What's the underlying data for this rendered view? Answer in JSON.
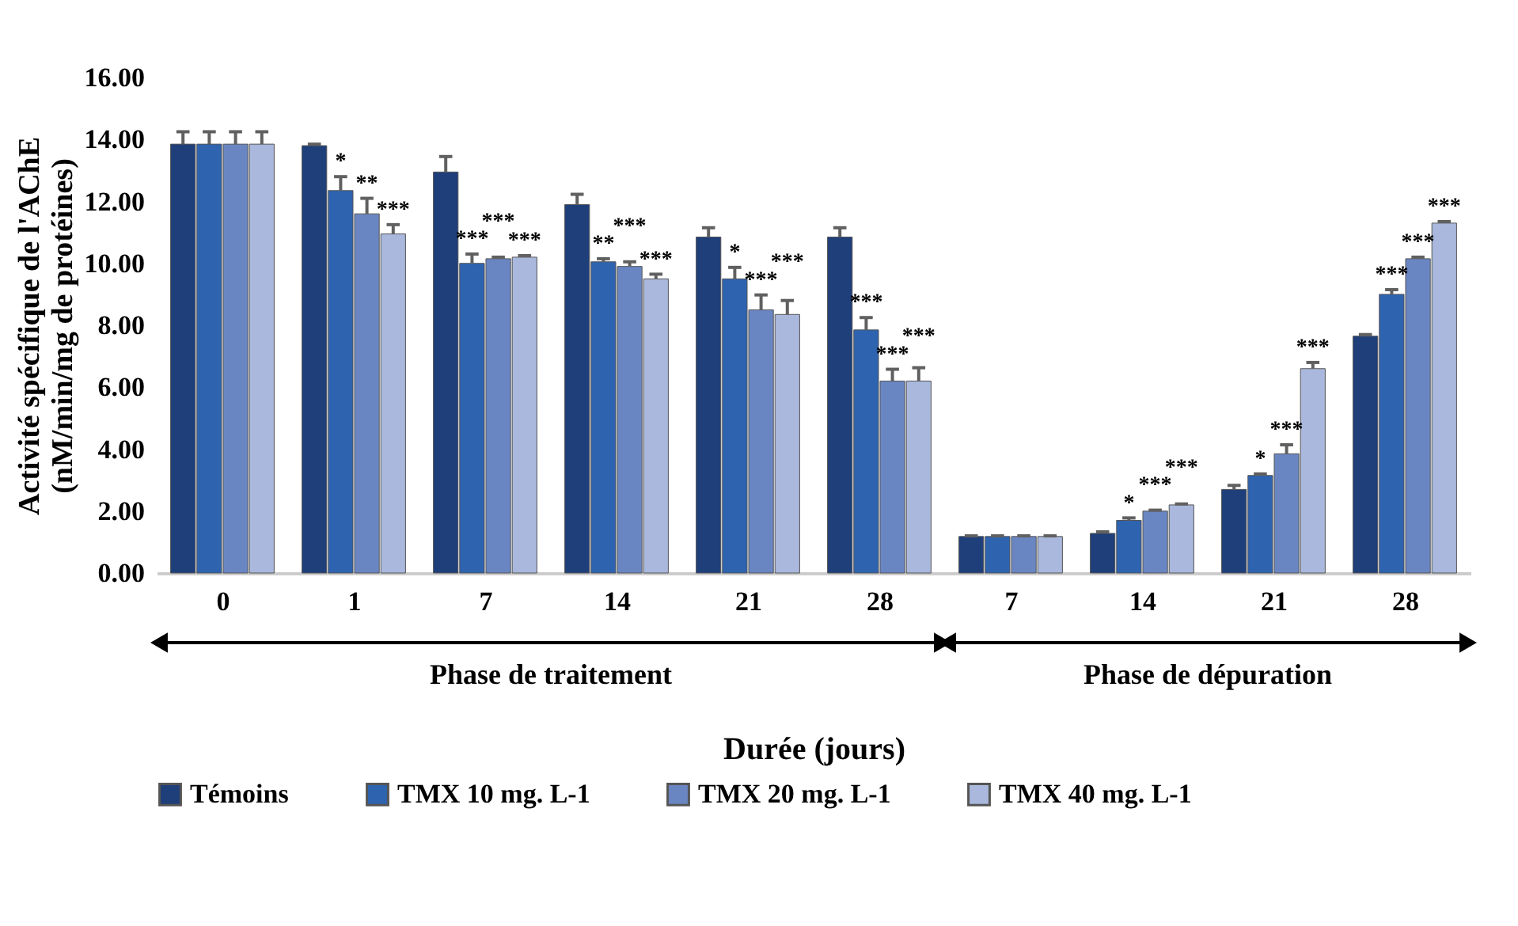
{
  "chart_data": {
    "type": "bar",
    "xlabel": "Durée (jours)",
    "ylabel": "Activité spécifique de l'AChE\n(nM/min/mg de protéines)",
    "categories": [
      "0",
      "1",
      "7",
      "14",
      "21",
      "28",
      "7",
      "14",
      "21",
      "28"
    ],
    "ylim": [
      0,
      16
    ],
    "yticks": [
      {
        "value": 0,
        "label": "0.00"
      },
      {
        "value": 2,
        "label": "2.00"
      },
      {
        "value": 4,
        "label": "4.00"
      },
      {
        "value": 6,
        "label": "6.00"
      },
      {
        "value": 8,
        "label": "8.00"
      },
      {
        "value": 10,
        "label": "10.00"
      },
      {
        "value": 12,
        "label": "12.00"
      },
      {
        "value": 14,
        "label": "14.00"
      },
      {
        "value": 16,
        "label": "16.00"
      }
    ],
    "grid": false,
    "legend": "bottom",
    "annotations": [
      "Phase de traitement",
      "Phase de dépuration"
    ],
    "series": [
      {
        "name": "Témoins",
        "color": "#1f3f7a",
        "values": [
          13.85,
          13.8,
          12.95,
          11.9,
          10.85,
          10.85,
          1.18,
          1.28,
          2.7,
          7.65
        ],
        "errors": [
          0.4,
          0.05,
          0.5,
          0.33,
          0.3,
          0.3,
          0.02,
          0.05,
          0.13,
          0.05
        ]
      },
      {
        "name": "TMX 10 mg. L-1",
        "color": "#2e63b0",
        "values": [
          13.85,
          12.35,
          10.0,
          10.05,
          9.5,
          7.85,
          1.18,
          1.7,
          3.15,
          9.0
        ],
        "errors": [
          0.4,
          0.45,
          0.3,
          0.1,
          0.37,
          0.4,
          0.02,
          0.08,
          0.05,
          0.15
        ],
        "value_labels": [
          null,
          "*",
          "***",
          "**",
          "*",
          "***",
          null,
          "*",
          "*",
          "***"
        ]
      },
      {
        "name": "TMX 20 mg. L-1",
        "color": "#6a86c2",
        "values": [
          13.85,
          11.6,
          10.15,
          9.9,
          8.5,
          6.2,
          1.18,
          2.0,
          3.85,
          10.15
        ],
        "errors": [
          0.4,
          0.5,
          0.05,
          0.15,
          0.48,
          0.38,
          0.02,
          0.03,
          0.29,
          0.05
        ],
        "value_labels": [
          null,
          "**",
          "***",
          "***",
          "***",
          "***",
          null,
          "***",
          "***",
          "***"
        ]
      },
      {
        "name": "TMX 40 mg. L-1",
        "color": "#a9b8dc",
        "values": [
          13.85,
          10.95,
          10.2,
          9.5,
          8.35,
          6.2,
          1.18,
          2.2,
          6.6,
          11.3
        ],
        "errors": [
          0.4,
          0.3,
          0.05,
          0.15,
          0.45,
          0.43,
          0.02,
          0.03,
          0.2,
          0.05
        ],
        "value_labels": [
          null,
          "***",
          "***",
          "***",
          "***",
          "***",
          null,
          "***",
          "***",
          "***"
        ]
      }
    ]
  }
}
